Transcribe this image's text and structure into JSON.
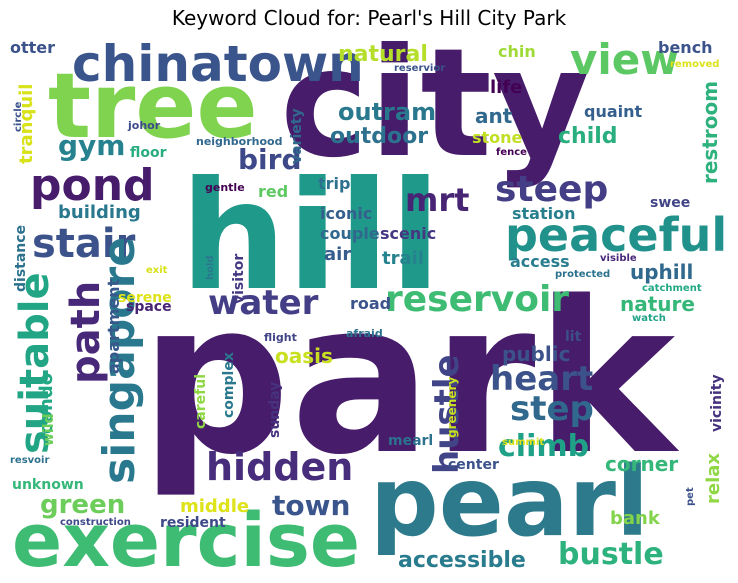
{
  "title": "Keyword Cloud for: Pearl's Hill City Park",
  "words": [
    {
      "text": "park",
      "color": "#471c6b"
    },
    {
      "text": "city",
      "color": "#471c6b"
    },
    {
      "text": "hill",
      "color": "#1f9a8a"
    },
    {
      "text": "tree",
      "color": "#7fd34e"
    },
    {
      "text": "pearl",
      "color": "#2c7a8c"
    },
    {
      "text": "exercise",
      "color": "#3fbc73"
    },
    {
      "text": "chinatown",
      "color": "#3a548c"
    },
    {
      "text": "view",
      "color": "#5cc863"
    },
    {
      "text": "pond",
      "color": "#471c6b"
    },
    {
      "text": "peaceful",
      "color": "#21918c"
    },
    {
      "text": "stair",
      "color": "#3b528b"
    },
    {
      "text": "steep",
      "color": "#433e85"
    },
    {
      "text": "reservoir",
      "color": "#3fbc73"
    },
    {
      "text": "path",
      "color": "#482878"
    },
    {
      "text": "suitable",
      "color": "#21a585"
    },
    {
      "text": "singapore",
      "color": "#2a788e"
    },
    {
      "text": "water",
      "color": "#433e85"
    },
    {
      "text": "heart",
      "color": "#3b528b"
    },
    {
      "text": "hidden",
      "color": "#472d7b"
    },
    {
      "text": "step",
      "color": "#31688e"
    },
    {
      "text": "hustle",
      "color": "#414487"
    },
    {
      "text": "climb",
      "color": "#1fa187"
    },
    {
      "text": "green",
      "color": "#6ccd5a"
    },
    {
      "text": "town",
      "color": "#3a548c"
    },
    {
      "text": "bustle",
      "color": "#2db27d"
    },
    {
      "text": "accessible",
      "color": "#287c8e"
    },
    {
      "text": "mrt",
      "color": "#482475"
    },
    {
      "text": "bird",
      "color": "#3e4989"
    },
    {
      "text": "gym",
      "color": "#26828e"
    },
    {
      "text": "outram",
      "color": "#2a788e"
    },
    {
      "text": "outdoor",
      "color": "#2c728e"
    },
    {
      "text": "natural",
      "color": "#b5de2b"
    },
    {
      "text": "ant",
      "color": "#31688e"
    },
    {
      "text": "child",
      "color": "#29af7f"
    },
    {
      "text": "life",
      "color": "#440154"
    },
    {
      "text": "stone",
      "color": "#c2df23"
    },
    {
      "text": "building",
      "color": "#2a788e"
    },
    {
      "text": "restroom",
      "color": "#2db27d"
    },
    {
      "text": "uphill",
      "color": "#31688e"
    },
    {
      "text": "nature",
      "color": "#35b779"
    },
    {
      "text": "public",
      "color": "#3b528b"
    },
    {
      "text": "corner",
      "color": "#35b779"
    },
    {
      "text": "relax",
      "color": "#8fd744"
    },
    {
      "text": "bank",
      "color": "#84d44b"
    },
    {
      "text": "oasis",
      "color": "#c8e020"
    },
    {
      "text": "middle",
      "color": "#dde318"
    },
    {
      "text": "resident",
      "color": "#3e4989"
    },
    {
      "text": "condo",
      "color": "#22a884"
    },
    {
      "text": "apartment",
      "color": "#38588c"
    },
    {
      "text": "road",
      "color": "#3b528b"
    },
    {
      "text": "air",
      "color": "#365c8d"
    },
    {
      "text": "trail",
      "color": "#26828e"
    },
    {
      "text": "iconic",
      "color": "#355f8d"
    },
    {
      "text": "couple",
      "color": "#31688e"
    },
    {
      "text": "scenic",
      "color": "#453781"
    },
    {
      "text": "trip",
      "color": "#2c728e"
    },
    {
      "text": "red",
      "color": "#5ec962"
    },
    {
      "text": "station",
      "color": "#277f8e"
    },
    {
      "text": "access",
      "color": "#287d8e"
    },
    {
      "text": "swee",
      "color": "#414487"
    },
    {
      "text": "quaint",
      "color": "#355f8d"
    },
    {
      "text": "bench",
      "color": "#3b528b"
    },
    {
      "text": "chin",
      "color": "#a0da39"
    },
    {
      "text": "otter",
      "color": "#3b528b"
    },
    {
      "text": "tranquil",
      "color": "#d8e219"
    },
    {
      "text": "floor",
      "color": "#27ad81"
    },
    {
      "text": "distance",
      "color": "#2c728e"
    },
    {
      "text": "variety",
      "color": "#31688e"
    },
    {
      "text": "visitor",
      "color": "#453882"
    },
    {
      "text": "lit",
      "color": "#3d4e8a"
    },
    {
      "text": "mearl",
      "color": "#2c728e"
    },
    {
      "text": "center",
      "color": "#3b528b"
    },
    {
      "text": "unknown",
      "color": "#35b779"
    },
    {
      "text": "wild",
      "color": "#6ccd5a"
    },
    {
      "text": "careful",
      "color": "#8fd744"
    },
    {
      "text": "complex",
      "color": "#2a788e"
    },
    {
      "text": "sunday",
      "color": "#46327e"
    },
    {
      "text": "greenery",
      "color": "#c8e020"
    },
    {
      "text": "vicinity",
      "color": "#46327e"
    },
    {
      "text": "serene",
      "color": "#dde318"
    },
    {
      "text": "space",
      "color": "#482475"
    },
    {
      "text": "johor",
      "color": "#3e4989"
    },
    {
      "text": "circle",
      "color": "#3b528b"
    },
    {
      "text": "neighborhood",
      "color": "#31688e"
    },
    {
      "text": "gentle",
      "color": "#440154"
    },
    {
      "text": "hold",
      "color": "#2a788e"
    },
    {
      "text": "exit",
      "color": "#d8e219"
    },
    {
      "text": "flight",
      "color": "#414487"
    },
    {
      "text": "afraid",
      "color": "#2c728e"
    },
    {
      "text": "protected",
      "color": "#2c728e"
    },
    {
      "text": "visible",
      "color": "#482878"
    },
    {
      "text": "catchment",
      "color": "#22a884"
    },
    {
      "text": "watch",
      "color": "#20a386"
    },
    {
      "text": "fence",
      "color": "#440154"
    },
    {
      "text": "reservior",
      "color": "#3b528b"
    },
    {
      "text": "removed",
      "color": "#dde318"
    },
    {
      "text": "resvoir",
      "color": "#2c728e"
    },
    {
      "text": "construction",
      "color": "#3e4989"
    },
    {
      "text": "summit",
      "color": "#e0e319"
    },
    {
      "text": "pet",
      "color": "#3b528b"
    }
  ]
}
